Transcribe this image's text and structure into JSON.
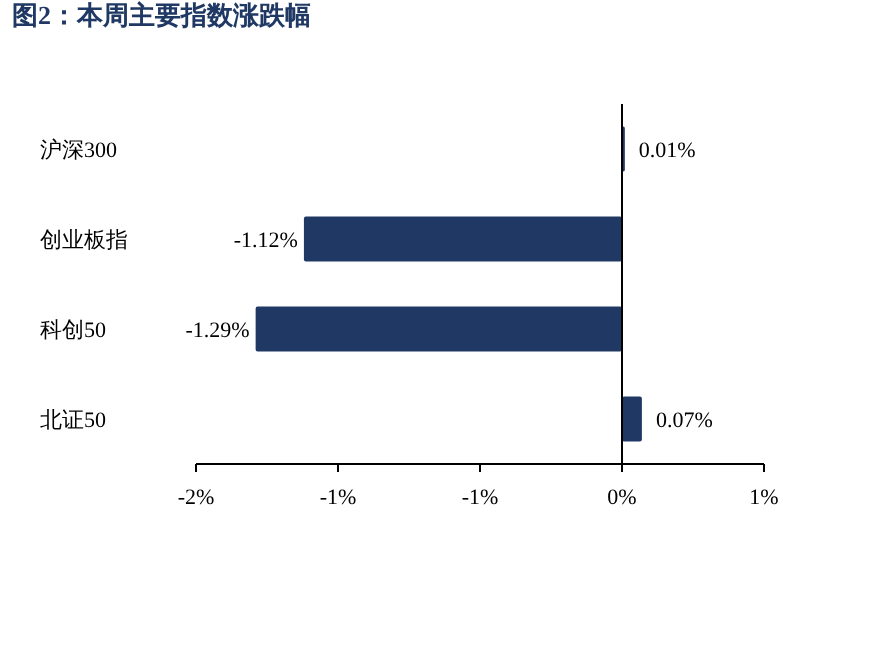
{
  "chart_data": {
    "type": "bar",
    "title": "图2：本周主要指数涨跌幅",
    "orientation": "horizontal",
    "categories": [
      "沪深300",
      "创业板指",
      "科创50",
      "北证50"
    ],
    "values": [
      0.01,
      -1.12,
      -1.29,
      0.07
    ],
    "value_labels": [
      "0.01%",
      "-1.12%",
      "-1.29%",
      "0.07%"
    ],
    "color": "#1f3864",
    "xlim": [
      -1.5,
      0.5
    ],
    "xticks": [
      {
        "value": -1.5,
        "label": "-2%"
      },
      {
        "value": -1.0,
        "label": "-1%"
      },
      {
        "value": -0.5,
        "label": "-1%"
      },
      {
        "value": 0,
        "label": "0%"
      },
      {
        "value": 0.5,
        "label": "1%"
      }
    ]
  }
}
